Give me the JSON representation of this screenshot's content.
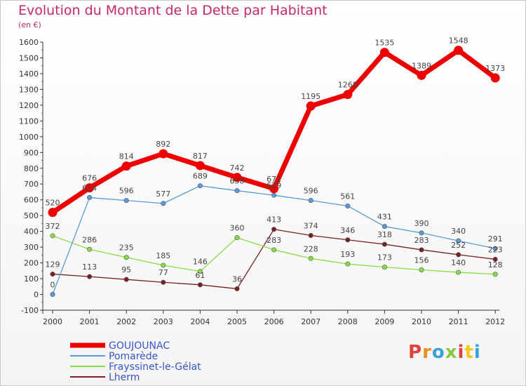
{
  "header": {
    "title": "Evolution du Montant de la Dette par Habitant",
    "subtitle": "(en €)"
  },
  "logo": {
    "text": "Proxiti",
    "colors": [
      "#e0413a",
      "#f08c1e",
      "#3aa0d8",
      "#8cc63f",
      "#e0413a",
      "#f0c81e",
      "#3aa0d8"
    ]
  },
  "chart_data": {
    "type": "line",
    "title": "Evolution du Montant de la Dette par Habitant",
    "subtitle": "(en €)",
    "xlabel": "",
    "ylabel": "",
    "categories": [
      "2000",
      "2001",
      "2002",
      "2003",
      "2004",
      "2005",
      "2006",
      "2007",
      "2008",
      "2009",
      "2010",
      "2011",
      "2012"
    ],
    "ylim": [
      -100,
      1600
    ],
    "yticks": [
      -100,
      0,
      100,
      200,
      300,
      400,
      500,
      600,
      700,
      800,
      900,
      1000,
      1100,
      1200,
      1300,
      1400,
      1500,
      1600
    ],
    "grid": false,
    "legend_position": "bottom-left",
    "series": [
      {
        "name": "GOUJOUNAC",
        "color": "#ee0000",
        "values": [
          520,
          676,
          814,
          892,
          817,
          742,
          671,
          1195,
          1268,
          1535,
          1389,
          1548,
          1373
        ],
        "labels": [
          "520",
          "676",
          "814",
          "892",
          "817",
          "742",
          "671",
          "1195",
          "1268",
          "1535",
          "1389",
          "1548",
          "1373"
        ]
      },
      {
        "name": "Pomarède",
        "color": "#5a9ad8",
        "values": [
          0,
          614,
          596,
          577,
          689,
          658,
          629,
          596,
          561,
          431,
          390,
          340,
          291
        ],
        "labels": [
          "0",
          "614",
          "596",
          "577",
          "689",
          "658",
          "629",
          "596",
          "561",
          "431",
          "390",
          "340",
          "291"
        ]
      },
      {
        "name": "Frayssinet-le-Gélat",
        "color": "#88dd44",
        "values": [
          372,
          286,
          235,
          185,
          146,
          360,
          283,
          228,
          193,
          173,
          156,
          140,
          128
        ],
        "labels": [
          "372",
          "286",
          "235",
          "185",
          "146",
          "360",
          "283",
          "228",
          "193",
          "173",
          "156",
          "140",
          "128"
        ]
      },
      {
        "name": "Lherm",
        "color": "#7a1f22",
        "values": [
          129,
          113,
          95,
          77,
          61,
          36,
          413,
          374,
          346,
          318,
          283,
          252,
          223
        ],
        "labels": [
          "129",
          "113",
          "95",
          "77",
          "61",
          "36",
          "413",
          "374",
          "346",
          "318",
          "283",
          "252",
          "223"
        ]
      }
    ]
  }
}
